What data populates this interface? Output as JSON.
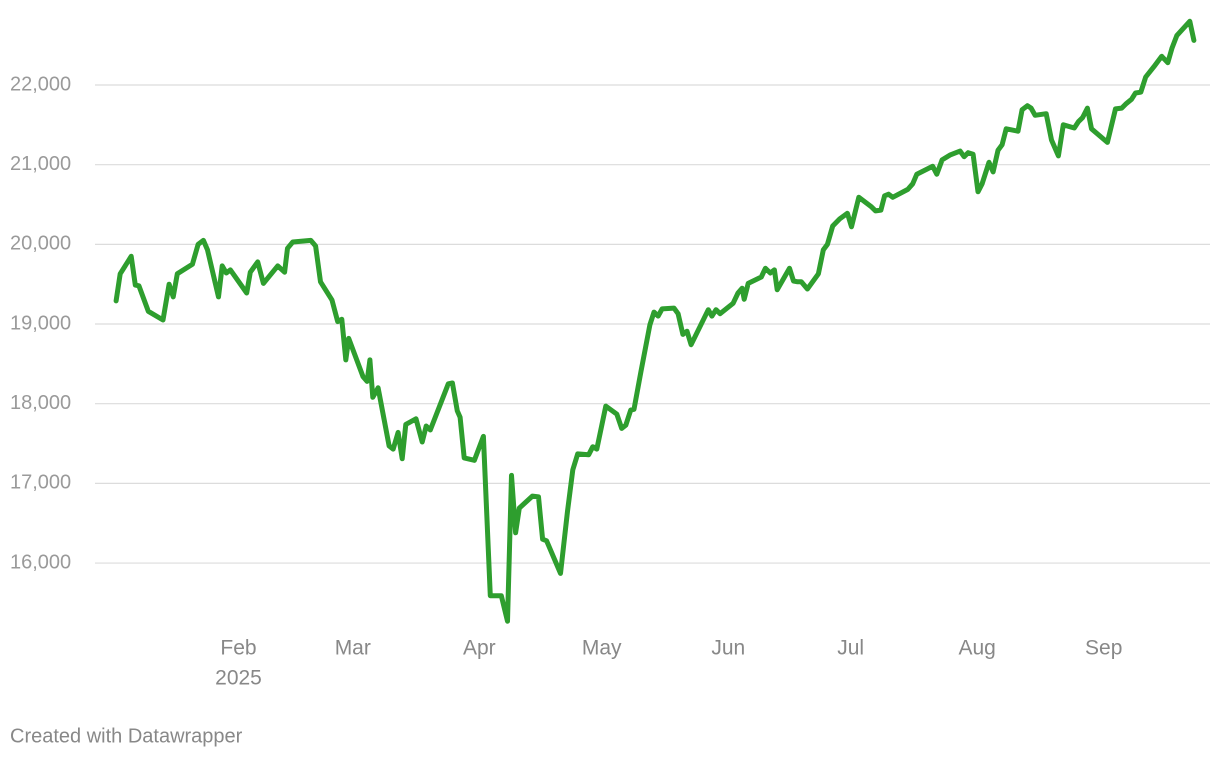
{
  "chart_data": {
    "type": "line",
    "x": [
      2.0,
      3.0,
      5.7,
      6.7,
      7.6,
      9.9,
      13.5,
      15.0,
      16.0,
      17.0,
      20.7,
      22.1,
      23.4,
      24.4,
      27.1,
      28.0,
      29.0,
      30.0,
      34.0,
      34.9,
      36.7,
      38.1,
      41.6,
      43.3,
      44.0,
      45.3,
      49.7,
      50.9,
      52.1,
      54.9,
      56.3,
      57.3,
      58.3,
      59.0,
      62.5,
      63.5,
      64.2,
      64.9,
      66.2,
      68.9,
      69.9,
      71.1,
      72.1,
      73.0,
      75.5,
      77.0,
      78.0,
      79.0,
      83.4,
      84.4,
      85.6,
      86.3,
      87.3,
      89.8,
      92.0,
      93.7,
      96.4,
      97.9,
      98.9,
      99.9,
      100.8,
      104.0,
      105.5,
      106.5,
      107.5,
      110.9,
      112.6,
      113.9,
      115.1,
      117.8,
      118.8,
      119.8,
      122.0,
      124.7,
      125.9,
      126.9,
      128.1,
      128.9,
      130.6,
      132.8,
      133.8,
      134.8,
      135.8,
      138.7,
      139.7,
      140.9,
      141.9,
      142.9,
      147.1,
      148.0,
      149.0,
      150.0,
      153.2,
      154.4,
      155.4,
      155.9,
      156.9,
      160.1,
      161.1,
      162.3,
      163.3,
      164.0,
      167.0,
      168.0,
      169.0,
      169.9,
      171.4,
      174.1,
      175.3,
      176.3,
      177.6,
      179.3,
      181.2,
      182.2,
      184.0,
      187.1,
      188.1,
      189.4,
      190.3,
      191.3,
      192.3,
      196.0,
      197.2,
      198.2,
      202.1,
      203.1,
      204.4,
      206.3,
      208.8,
      209.8,
      210.8,
      212.0,
      213.2,
      214.2,
      215.9,
      216.9,
      218.1,
      219.1,
      220.1,
      223.0,
      224.0,
      225.3,
      226.2,
      227.2,
      229.9,
      231.2,
      232.9,
      234.1,
      236.8,
      237.8,
      238.8,
      240.0,
      241.0,
      244.9,
      246.9,
      248.4,
      249.4,
      250.8,
      251.8,
      253.1,
      254.3,
      256.3,
      258.2,
      259.7,
      260.7,
      261.9,
      265.1,
      266.1
    ],
    "series": [
      {
        "color": "#2e9e2e",
        "values": [
          19290,
          19630,
          19850,
          19490,
          19480,
          19160,
          19050,
          19500,
          19340,
          19630,
          19750,
          20000,
          20050,
          19930,
          19340,
          19730,
          19640,
          19680,
          19390,
          19650,
          19780,
          19510,
          19730,
          19650,
          19950,
          20030,
          20050,
          19980,
          19530,
          19300,
          19030,
          19060,
          18550,
          18820,
          18340,
          18280,
          18550,
          18080,
          18200,
          17470,
          17430,
          17640,
          17310,
          17740,
          17810,
          17520,
          17720,
          17670,
          18250,
          18260,
          17910,
          17830,
          17320,
          17290,
          17590,
          15590,
          15590,
          15270,
          17100,
          16380,
          16690,
          16840,
          16830,
          16300,
          16280,
          15870,
          16650,
          17170,
          17370,
          17360,
          17460,
          17430,
          17970,
          17870,
          17690,
          17730,
          17920,
          17930,
          18400,
          18990,
          19150,
          19100,
          19190,
          19200,
          19130,
          18870,
          18910,
          18740,
          19180,
          19100,
          19180,
          19130,
          19260,
          19390,
          19450,
          19310,
          19510,
          19590,
          19700,
          19640,
          19680,
          19430,
          19700,
          19540,
          19530,
          19530,
          19440,
          19630,
          19930,
          20000,
          20230,
          20320,
          20390,
          20220,
          20590,
          20470,
          20420,
          20430,
          20610,
          20630,
          20590,
          20690,
          20760,
          20880,
          20980,
          20880,
          21060,
          21120,
          21170,
          21100,
          21150,
          21130,
          20660,
          20760,
          21030,
          20910,
          21180,
          21250,
          21450,
          21420,
          21690,
          21740,
          21710,
          21620,
          21640,
          21310,
          21110,
          21500,
          21460,
          21540,
          21590,
          21710,
          21450,
          21280,
          21700,
          21710,
          21760,
          21820,
          21900,
          21910,
          22100,
          22230,
          22360,
          22280,
          22460,
          22620,
          22800,
          22560
        ]
      }
    ],
    "xlim": [
      1,
      271
    ],
    "xticks": [
      {
        "value": 32,
        "label": "Feb"
      },
      {
        "value": 60,
        "label": "Mar"
      },
      {
        "value": 91,
        "label": "Apr"
      },
      {
        "value": 121,
        "label": "May"
      },
      {
        "value": 152,
        "label": "Jun"
      },
      {
        "value": 182,
        "label": "Jul"
      },
      {
        "value": 213,
        "label": "Aug"
      },
      {
        "value": 244,
        "label": "Sep"
      }
    ],
    "xtick_year": "2025",
    "ylim": [
      15200,
      22900
    ],
    "yticks": [
      {
        "value": 16000,
        "label": "16,000"
      },
      {
        "value": 17000,
        "label": "17,000"
      },
      {
        "value": 18000,
        "label": "18,000"
      },
      {
        "value": 19000,
        "label": "19,000"
      },
      {
        "value": 20000,
        "label": "20,000"
      },
      {
        "value": 21000,
        "label": "21,000"
      },
      {
        "value": 22000,
        "label": "22,000"
      }
    ],
    "grid": true,
    "footer": "Created with Datawrapper"
  }
}
